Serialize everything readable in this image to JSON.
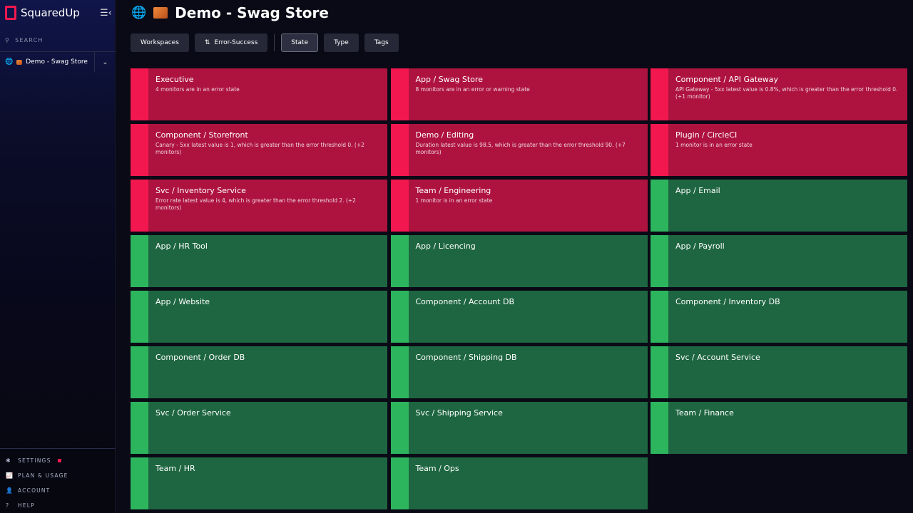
{
  "sidebar": {
    "brand": "SquaredUp",
    "search": "SEARCH",
    "workspace": "Demo - Swag Store",
    "footer": [
      {
        "label": "SETTINGS",
        "icon": "gear-icon"
      },
      {
        "label": "PLAN & USAGE",
        "icon": "chart-icon"
      },
      {
        "label": "ACCOUNT",
        "icon": "user-icon"
      },
      {
        "label": "HELP",
        "icon": "help-icon"
      }
    ]
  },
  "header": {
    "title": "Demo - Swag Store"
  },
  "toolbar": {
    "workspaces": "Workspaces",
    "sort": "Error-Success",
    "state": "State",
    "type": "Type",
    "tags": "Tags"
  },
  "colors": {
    "error": "#ae1340",
    "error_stripe": "#f2184f",
    "success": "#1e6641",
    "success_stripe": "#2db55d"
  },
  "tiles": [
    {
      "name": "Executive",
      "state": "error",
      "desc": "4 monitors are in an error state"
    },
    {
      "name": "App / Swag Store",
      "state": "error",
      "desc": "8 monitors are in an error or warning state"
    },
    {
      "name": "Component / API Gateway",
      "state": "error",
      "desc": "API Gateway - 5xx latest value is 0.8%, which is greater than the error threshold 0. (+1 monitor)"
    },
    {
      "name": "Component / Storefront",
      "state": "error",
      "desc": "Canary - 5xx latest value is 1, which is greater than the error threshold 0. (+2 monitors)"
    },
    {
      "name": "Demo / Editing",
      "state": "error",
      "desc": "Duration latest value is 98.5, which is greater than the error threshold 90. (+7 monitors)"
    },
    {
      "name": "Plugin / CircleCI",
      "state": "error",
      "desc": "1 monitor is in an error state"
    },
    {
      "name": "Svc / Inventory Service",
      "state": "error",
      "desc": "Error rate latest value is 4, which is greater than the error threshold 2. (+2 monitors)"
    },
    {
      "name": "Team / Engineering",
      "state": "error",
      "desc": "1 monitor is in an error state"
    },
    {
      "name": "App / Email",
      "state": "success",
      "desc": ""
    },
    {
      "name": "App / HR Tool",
      "state": "success",
      "desc": ""
    },
    {
      "name": "App / Licencing",
      "state": "success",
      "desc": ""
    },
    {
      "name": "App / Payroll",
      "state": "success",
      "desc": ""
    },
    {
      "name": "App / Website",
      "state": "success",
      "desc": ""
    },
    {
      "name": "Component / Account DB",
      "state": "success",
      "desc": ""
    },
    {
      "name": "Component / Inventory DB",
      "state": "success",
      "desc": ""
    },
    {
      "name": "Component / Order DB",
      "state": "success",
      "desc": ""
    },
    {
      "name": "Component / Shipping DB",
      "state": "success",
      "desc": ""
    },
    {
      "name": "Svc / Account Service",
      "state": "success",
      "desc": ""
    },
    {
      "name": "Svc / Order Service",
      "state": "success",
      "desc": ""
    },
    {
      "name": "Svc / Shipping Service",
      "state": "success",
      "desc": ""
    },
    {
      "name": "Team / Finance",
      "state": "success",
      "desc": ""
    },
    {
      "name": "Team / HR",
      "state": "success",
      "desc": ""
    },
    {
      "name": "Team / Ops",
      "state": "success",
      "desc": ""
    }
  ]
}
